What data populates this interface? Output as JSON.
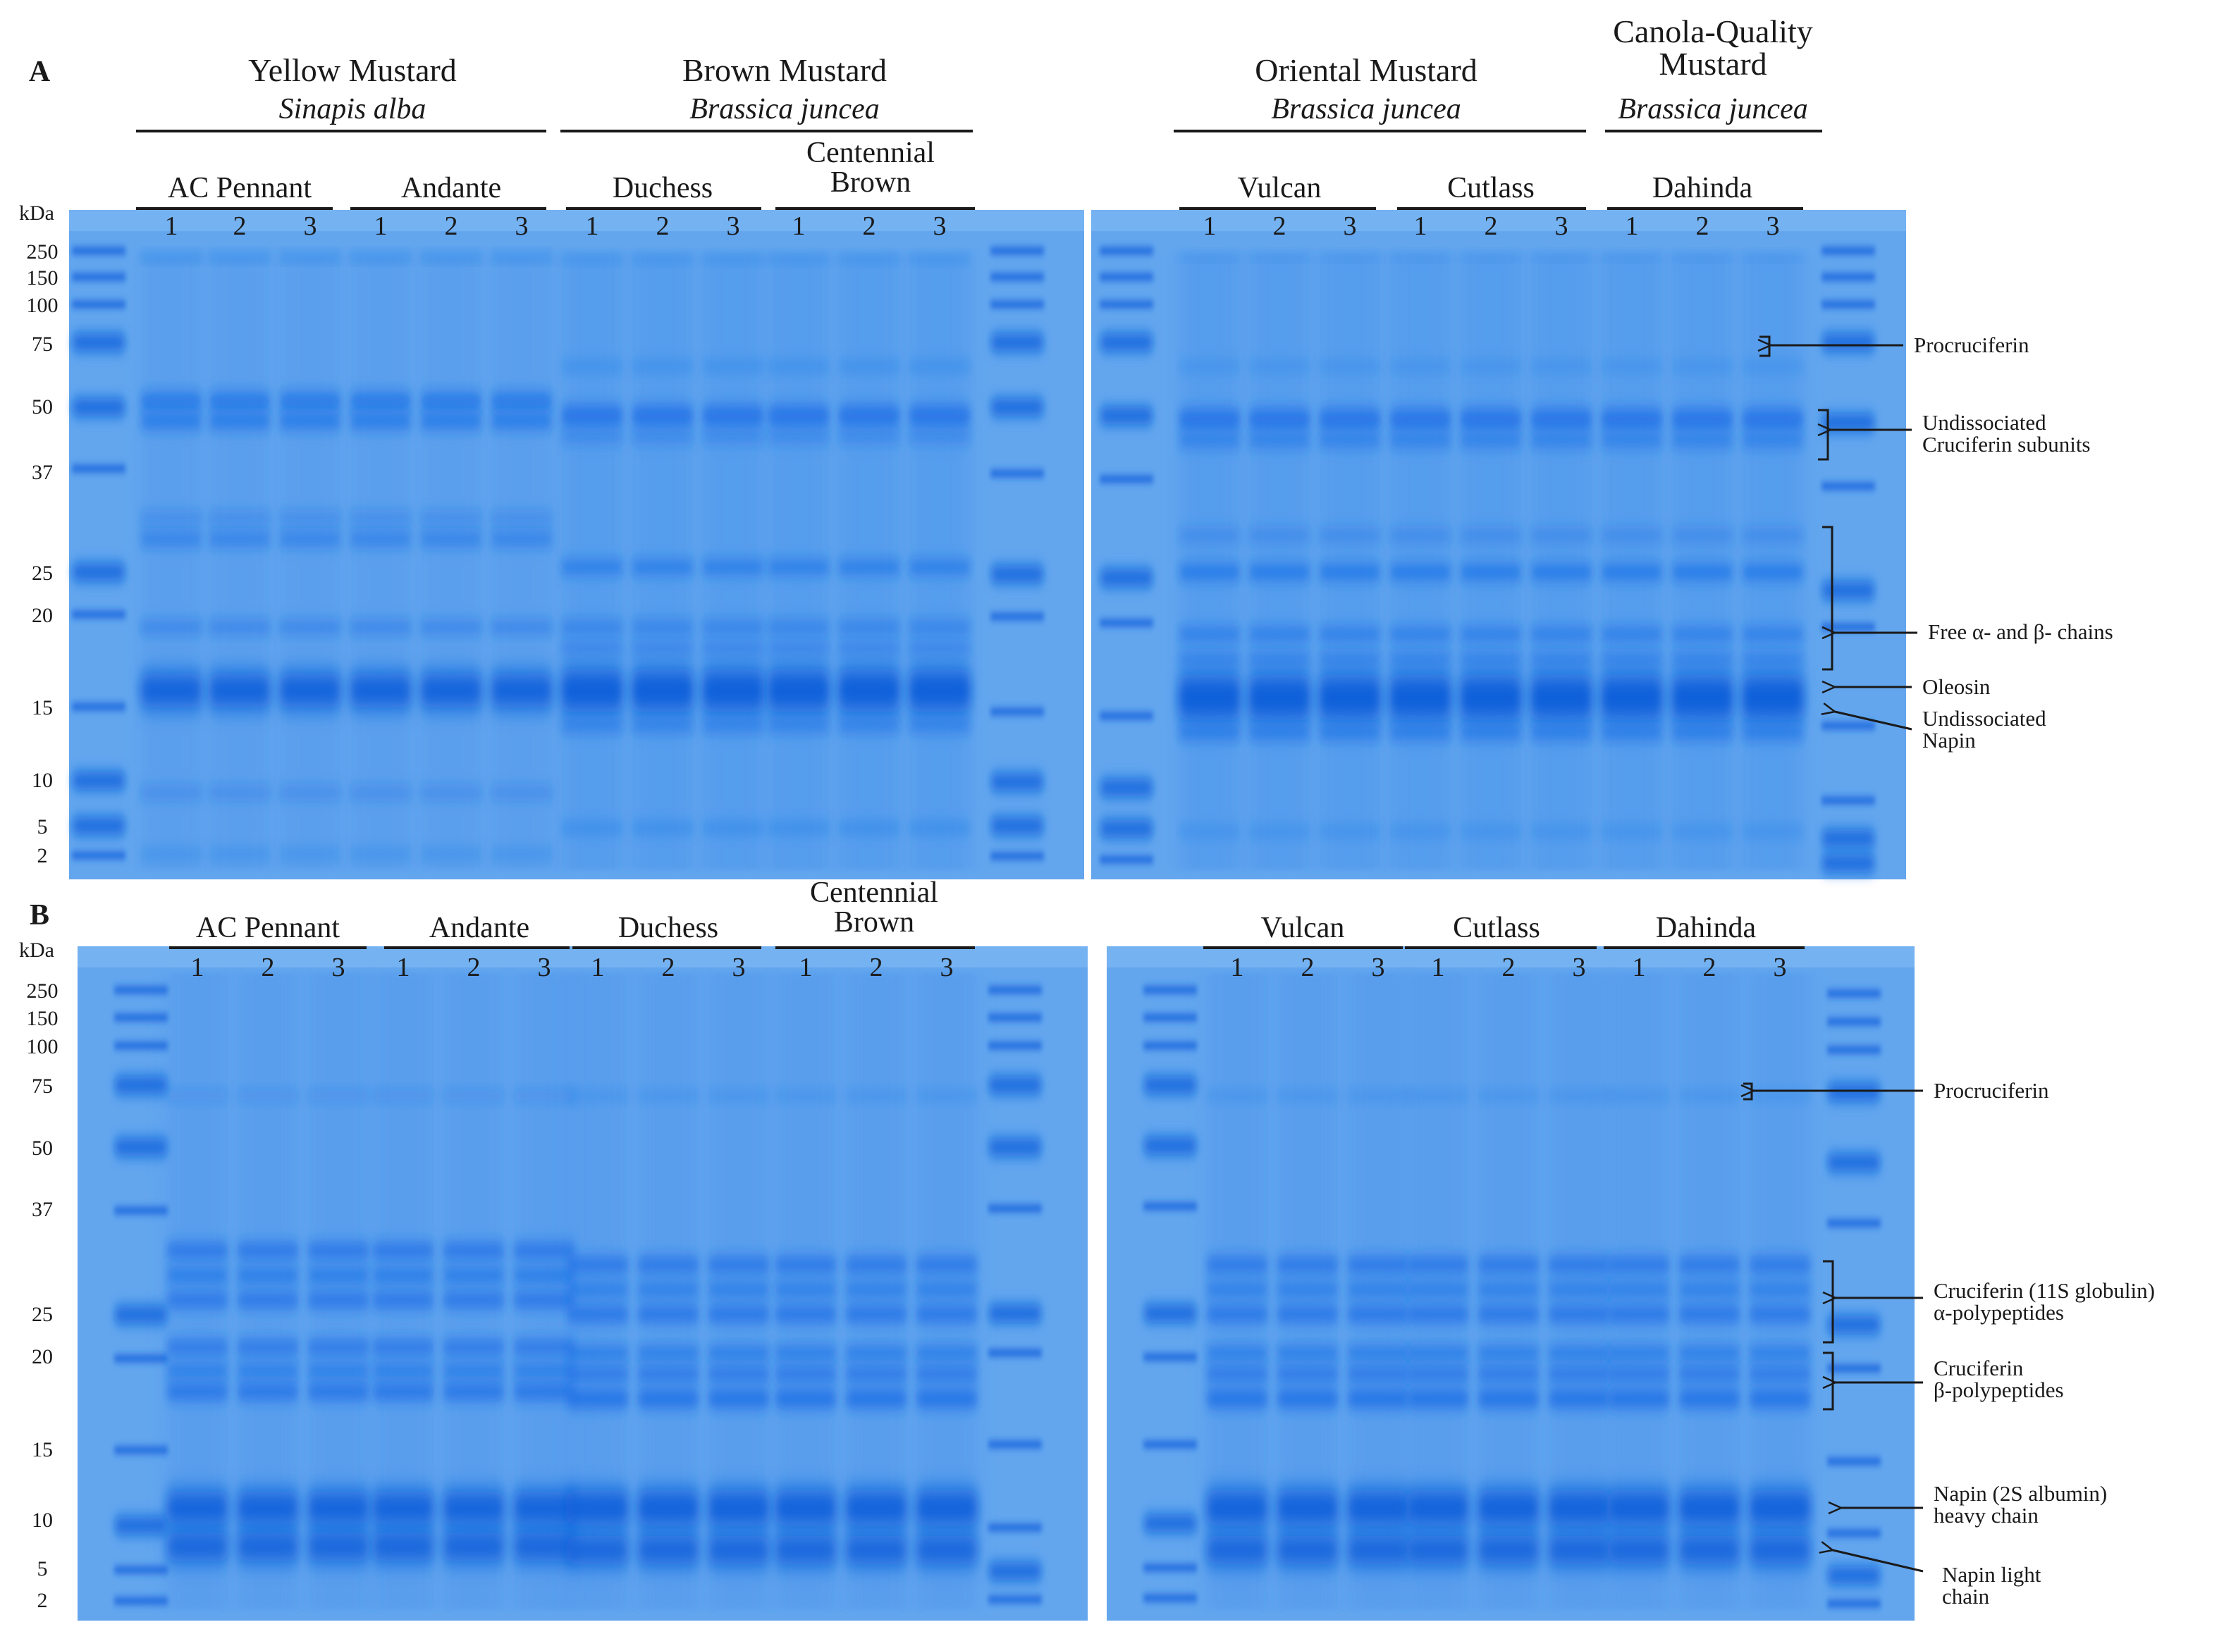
{
  "panels": [
    {
      "label": "A",
      "species": [
        {
          "common": "Yellow Mustard",
          "latin": "Sinapis alba"
        },
        {
          "common": "Brown Mustard",
          "latin": "Brassica juncea"
        },
        {
          "common": "Oriental Mustard",
          "latin": "Brassica juncea"
        },
        {
          "common": "Canola-Quality\nMustard",
          "latin": "Brassica juncea"
        }
      ],
      "cultivars": [
        "AC Pennant",
        "Andante",
        "Duchess",
        "Centennial\nBrown",
        "Vulcan",
        "Cutlass",
        "Dahinda"
      ],
      "lanes": [
        "1",
        "2",
        "3"
      ],
      "unit": "kDa",
      "markers": [
        "250",
        "150",
        "100",
        "75",
        "50",
        "37",
        "25",
        "20",
        "15",
        "10",
        "5",
        "2"
      ],
      "annotations": [
        "Procruciferin",
        "Undissociated\nCruciferin subunits",
        "Free α- and β- chains",
        "Oleosin",
        "Undissociated\nNapin"
      ]
    },
    {
      "label": "B",
      "cultivars": [
        "AC Pennant",
        "Andante",
        "Duchess",
        "Centennial\nBrown",
        "Vulcan",
        "Cutlass",
        "Dahinda"
      ],
      "lanes": [
        "1",
        "2",
        "3"
      ],
      "unit": "kDa",
      "markers": [
        "250",
        "150",
        "100",
        "75",
        "50",
        "37",
        "25",
        "20",
        "15",
        "10",
        "5",
        "2"
      ],
      "annotations": [
        "Procruciferin",
        "Cruciferin (11S globulin)\nα-polypeptides",
        "Cruciferin\nβ-polypeptides",
        "Napin (2S albumin)\nheavy chain",
        "Napin light\nchain"
      ]
    }
  ],
  "colors": {
    "gel_background": "#63a6ee",
    "band": "#1d6fe6",
    "ink": "#1a1a1a"
  }
}
